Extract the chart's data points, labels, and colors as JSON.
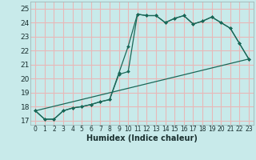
{
  "xlabel": "Humidex (Indice chaleur)",
  "bg_color": "#c8eaea",
  "grid_color": "#e8b8b8",
  "line_color": "#1a6858",
  "xlim": [
    -0.5,
    23.5
  ],
  "ylim": [
    16.7,
    25.5
  ],
  "xticks": [
    0,
    1,
    2,
    3,
    4,
    5,
    6,
    7,
    8,
    9,
    10,
    11,
    12,
    13,
    14,
    15,
    16,
    17,
    18,
    19,
    20,
    21,
    22,
    23
  ],
  "yticks": [
    17,
    18,
    19,
    20,
    21,
    22,
    23,
    24,
    25
  ],
  "line1_y": [
    17.7,
    17.1,
    17.1,
    17.7,
    17.9,
    18.0,
    18.15,
    18.35,
    18.5,
    20.4,
    22.3,
    24.6,
    24.5,
    24.5,
    24.0,
    24.3,
    24.5,
    23.9,
    24.1,
    24.4,
    24.0,
    23.6,
    22.5,
    21.4
  ],
  "line2_y": [
    17.7,
    17.1,
    17.1,
    17.7,
    17.9,
    18.0,
    18.15,
    18.35,
    18.5,
    20.3,
    20.5,
    24.6,
    24.5,
    24.5,
    24.0,
    24.3,
    24.5,
    23.9,
    24.1,
    24.4,
    24.0,
    23.6,
    22.5,
    21.4
  ],
  "line3_x": [
    0,
    23
  ],
  "line3_y": [
    17.7,
    21.4
  ]
}
